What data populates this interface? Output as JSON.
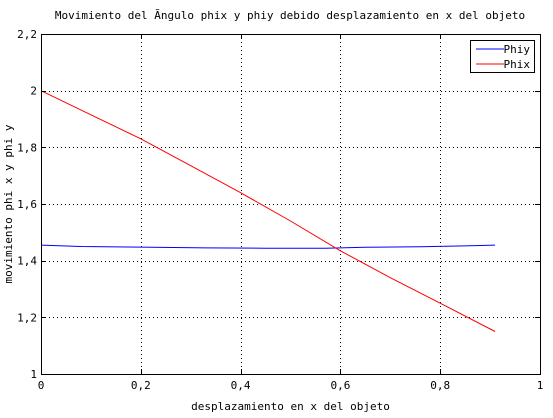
{
  "chart_data": {
    "type": "line",
    "title": "Movimiento del Ãngulo phix  y phiy debido desplazamiento en x del objeto",
    "xlabel": "desplazamiento en x del objeto",
    "ylabel": "movimiento phi x y phi y",
    "xlim": [
      0,
      1
    ],
    "ylim": [
      1,
      2.2
    ],
    "xticks": [
      0,
      0.2,
      0.4,
      0.6,
      0.8,
      1
    ],
    "yticks": [
      1,
      1.2,
      1.4,
      1.6,
      1.8,
      2,
      2.2
    ],
    "xtick_labels": [
      "0",
      "0,2",
      "0,4",
      "0,6",
      "0,8",
      "1"
    ],
    "ytick_labels": [
      "1",
      "1,2",
      "1,4",
      "1,6",
      "1,8",
      "2",
      "2,2"
    ],
    "grid": true,
    "legend_position": "top-right",
    "series": [
      {
        "name": "Phiy",
        "color": "#0000ff",
        "x": [
          0,
          0.08,
          0.2,
          0.33,
          0.45,
          0.57,
          0.65,
          0.76,
          0.85,
          0.91
        ],
        "y": [
          1.455,
          1.45,
          1.448,
          1.445,
          1.444,
          1.444,
          1.447,
          1.449,
          1.452,
          1.455
        ]
      },
      {
        "name": "Phix",
        "color": "#ff0000",
        "x": [
          0,
          0.1,
          0.2,
          0.3,
          0.4,
          0.5,
          0.6,
          0.7,
          0.8,
          0.91
        ],
        "y": [
          2.0,
          1.915,
          1.83,
          1.735,
          1.64,
          1.54,
          1.435,
          1.34,
          1.25,
          1.15
        ]
      }
    ]
  }
}
